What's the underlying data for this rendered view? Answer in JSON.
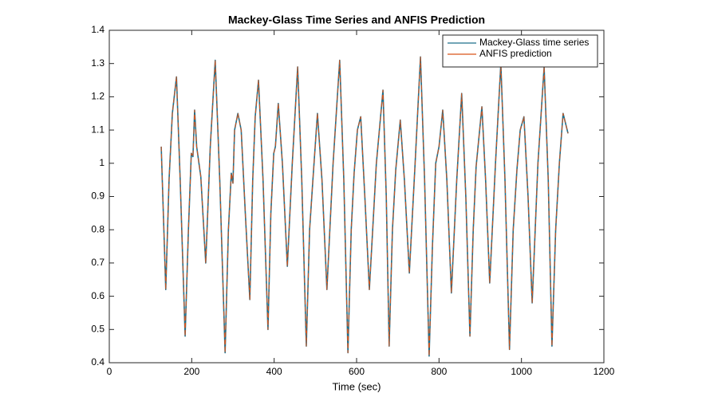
{
  "chart_data": {
    "type": "line",
    "title": "Mackey-Glass Time Series and ANFIS Prediction",
    "x_label": "Time (sec)",
    "x": [
      126,
      137,
      145,
      153,
      163,
      172,
      184,
      192,
      199,
      203,
      207,
      212,
      222,
      234,
      245,
      257,
      268,
      281,
      289,
      296,
      300,
      304,
      312,
      320,
      330,
      341,
      348,
      354,
      362,
      373,
      385,
      392,
      399,
      403,
      410,
      420,
      432,
      444,
      457,
      467,
      478,
      486,
      494,
      505,
      516,
      528,
      543,
      559,
      569,
      579,
      587,
      594,
      602,
      610,
      620,
      631,
      648,
      664,
      672,
      679,
      687,
      695,
      706,
      716,
      728,
      742,
      755,
      765,
      776,
      784,
      792,
      800,
      809,
      819,
      830,
      843,
      855,
      865,
      875,
      883,
      890,
      904,
      913,
      923,
      937,
      950,
      960,
      971,
      980,
      989,
      997,
      1006,
      1016,
      1026,
      1040,
      1055,
      1065,
      1074,
      1083,
      1092,
      1101,
      1113
    ],
    "series": [
      {
        "name": "Mackey-Glass time series",
        "color": "#1f6f8b",
        "values": [
          1.05,
          0.62,
          0.95,
          1.15,
          1.26,
          0.95,
          0.48,
          0.8,
          1.03,
          1.02,
          1.16,
          1.05,
          0.96,
          0.7,
          1.05,
          1.31,
          0.95,
          0.43,
          0.8,
          0.97,
          0.94,
          1.1,
          1.15,
          1.1,
          0.85,
          0.59,
          0.95,
          1.14,
          1.25,
          0.95,
          0.5,
          0.85,
          1.03,
          1.05,
          1.18,
          1.0,
          0.69,
          1.0,
          1.29,
          0.95,
          0.45,
          0.8,
          0.95,
          1.15,
          0.95,
          0.62,
          1.0,
          1.31,
          0.95,
          0.43,
          0.8,
          0.97,
          1.1,
          1.14,
          0.9,
          0.62,
          1.0,
          1.22,
          0.9,
          0.45,
          0.8,
          0.98,
          1.13,
          0.95,
          0.67,
          1.0,
          1.32,
          0.95,
          0.42,
          0.75,
          1.0,
          1.05,
          1.16,
          0.95,
          0.61,
          0.95,
          1.21,
          0.9,
          0.48,
          0.8,
          0.99,
          1.17,
          0.95,
          0.64,
          1.0,
          1.3,
          0.95,
          0.44,
          0.8,
          0.98,
          1.1,
          1.14,
          0.9,
          0.58,
          1.0,
          1.29,
          0.95,
          0.45,
          0.8,
          1.0,
          1.15,
          1.09
        ]
      },
      {
        "name": "ANFIS prediction",
        "color": "#d95319",
        "values": [
          1.05,
          0.62,
          0.95,
          1.15,
          1.26,
          0.95,
          0.48,
          0.8,
          1.03,
          1.02,
          1.16,
          1.05,
          0.96,
          0.7,
          1.05,
          1.31,
          0.95,
          0.43,
          0.8,
          0.97,
          0.94,
          1.1,
          1.15,
          1.1,
          0.85,
          0.59,
          0.95,
          1.14,
          1.25,
          0.95,
          0.5,
          0.85,
          1.03,
          1.05,
          1.18,
          1.0,
          0.69,
          1.0,
          1.29,
          0.95,
          0.45,
          0.8,
          0.95,
          1.15,
          0.95,
          0.62,
          1.0,
          1.31,
          0.95,
          0.43,
          0.8,
          0.97,
          1.1,
          1.14,
          0.9,
          0.62,
          1.0,
          1.22,
          0.9,
          0.45,
          0.8,
          0.98,
          1.13,
          0.95,
          0.67,
          1.0,
          1.32,
          0.95,
          0.42,
          0.75,
          1.0,
          1.05,
          1.16,
          0.95,
          0.61,
          0.95,
          1.21,
          0.9,
          0.48,
          0.8,
          0.99,
          1.17,
          0.95,
          0.64,
          1.0,
          1.3,
          0.95,
          0.44,
          0.8,
          0.98,
          1.1,
          1.14,
          0.9,
          0.58,
          1.0,
          1.29,
          0.95,
          0.45,
          0.8,
          1.0,
          1.15,
          1.09
        ]
      }
    ],
    "xlim": [
      0,
      1200
    ],
    "xticks": [
      0,
      200,
      400,
      600,
      800,
      1000,
      1200
    ],
    "ylim": [
      0.4,
      1.4
    ],
    "yticks": [
      0.4,
      0.5,
      0.6,
      0.7,
      0.8,
      0.9,
      1,
      1.1,
      1.2,
      1.3,
      1.4
    ],
    "grid": false,
    "legend": "northeast"
  }
}
